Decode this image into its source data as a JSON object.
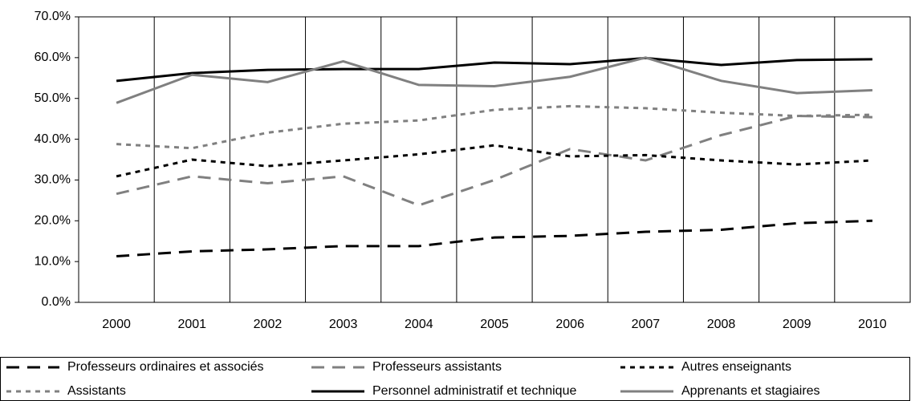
{
  "chart_data": {
    "type": "line",
    "categories": [
      "2000",
      "2001",
      "2002",
      "2003",
      "2004",
      "2005",
      "2006",
      "2007",
      "2008",
      "2009",
      "2010"
    ],
    "series": [
      {
        "name": "Professeurs ordinaires et associés",
        "color": "#000000",
        "dash": "16,10",
        "values": [
          11.3,
          12.5,
          13,
          13.8,
          13.8,
          15.9,
          16.3,
          17.3,
          17.8,
          19.4,
          20
        ]
      },
      {
        "name": "Professeurs assistants",
        "color": "#808080",
        "dash": "16,10",
        "values": [
          26.6,
          30.9,
          29.2,
          30.9,
          23.8,
          30,
          37.6,
          34.8,
          41,
          45.7,
          45.4
        ]
      },
      {
        "name": "Autres enseignants",
        "color": "#000000",
        "dash": "6,6",
        "values": [
          30.9,
          35,
          33.4,
          34.8,
          36.3,
          38.5,
          35.8,
          36.1,
          34.8,
          33.8,
          34.8
        ]
      },
      {
        "name": "Assistants",
        "color": "#808080",
        "dash": "6,6",
        "values": [
          38.8,
          37.8,
          41.6,
          43.8,
          44.6,
          47.2,
          48.1,
          47.6,
          46.5,
          45.7,
          46
        ]
      },
      {
        "name": "Personnel administratif et technique",
        "color": "#000000",
        "dash": "none",
        "values": [
          54.3,
          56.2,
          57,
          57.2,
          57.2,
          58.8,
          58.4,
          59.9,
          58.2,
          59.4,
          59.6
        ]
      },
      {
        "name": "Apprenants et stagiaires",
        "color": "#808080",
        "dash": "none",
        "values": [
          48.9,
          55.8,
          54,
          59.1,
          53.3,
          53,
          55.3,
          60,
          54.3,
          51.3,
          52
        ]
      }
    ],
    "ylim": [
      0,
      70
    ],
    "yticks": [
      {
        "value": 0,
        "label": "0.0%"
      },
      {
        "value": 10,
        "label": "10.0%"
      },
      {
        "value": 20,
        "label": "20.0%"
      },
      {
        "value": 30,
        "label": "30.0%"
      },
      {
        "value": 40,
        "label": "40.0%"
      },
      {
        "value": 50,
        "label": "50.0%"
      },
      {
        "value": 60,
        "label": "60.0%"
      },
      {
        "value": 70,
        "label": "70.0%"
      }
    ],
    "legend": "bottom"
  }
}
